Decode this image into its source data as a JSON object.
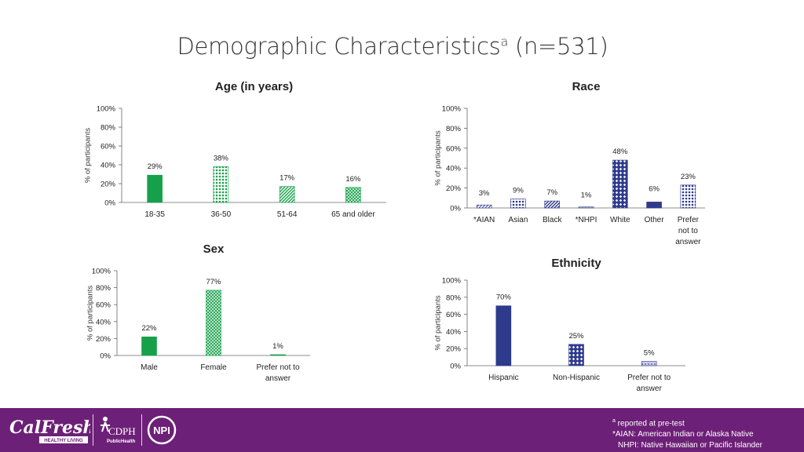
{
  "title": {
    "text": "Demographic Characteristics",
    "sup": "a",
    "suffix": " (n=531)"
  },
  "colors": {
    "green": "#16a04a",
    "navy": "#2e3a8c",
    "footer": "#6d2077"
  },
  "chart_data": [
    {
      "id": "age",
      "type": "bar",
      "title": "Age (in years)",
      "ylabel": "% of participants",
      "ylim": [
        0,
        100
      ],
      "yticks": [
        "0%",
        "20%",
        "40%",
        "60%",
        "80%",
        "100%"
      ],
      "categories": [
        [
          "18-35"
        ],
        [
          "36-50"
        ],
        [
          "51-64"
        ],
        [
          "65 and older"
        ]
      ],
      "values": [
        29,
        38,
        17,
        16
      ],
      "labels": [
        "29%",
        "38%",
        "17%",
        "16%"
      ],
      "color": "green",
      "patterns": [
        "solid",
        "dots",
        "diag",
        "grid"
      ]
    },
    {
      "id": "race",
      "type": "bar",
      "title": "Race",
      "ylabel": "% of participants",
      "ylim": [
        0,
        100
      ],
      "yticks": [
        "0%",
        "20%",
        "40%",
        "60%",
        "80%",
        "100%"
      ],
      "categories": [
        [
          "*AIAN"
        ],
        [
          "Asian"
        ],
        [
          "Black"
        ],
        [
          "*NHPI"
        ],
        [
          "White"
        ],
        [
          "Other"
        ],
        [
          "Prefer",
          "not to",
          "answer"
        ]
      ],
      "values": [
        3,
        9,
        7,
        1,
        48,
        6,
        23
      ],
      "labels": [
        "3%",
        "9%",
        "7%",
        "1%",
        "48%",
        "6%",
        "23%"
      ],
      "color": "navy",
      "patterns": [
        "lightdiag",
        "dots",
        "diag",
        "light",
        "diamonds",
        "solid",
        "dots"
      ]
    },
    {
      "id": "sex",
      "type": "bar",
      "title": "Sex",
      "ylabel": "% of participants",
      "ylim": [
        0,
        100
      ],
      "yticks": [
        "0%",
        "20%",
        "40%",
        "60%",
        "80%",
        "100%"
      ],
      "categories": [
        [
          "Male"
        ],
        [
          "Female"
        ],
        [
          "Prefer not to",
          "answer"
        ]
      ],
      "values": [
        22,
        77,
        1
      ],
      "labels": [
        "22%",
        "77%",
        "1%"
      ],
      "color": "green",
      "patterns": [
        "solid",
        "grid",
        "solid"
      ]
    },
    {
      "id": "ethnicity",
      "type": "bar",
      "title": "Ethnicity",
      "ylabel": "% of participants",
      "ylim": [
        0,
        100
      ],
      "yticks": [
        "0%",
        "20%",
        "40%",
        "60%",
        "80%",
        "100%"
      ],
      "categories": [
        [
          "Hispanic"
        ],
        [
          "Non-Hispanic"
        ],
        [
          "Prefer not to",
          "answer"
        ]
      ],
      "values": [
        70,
        25,
        5
      ],
      "labels": [
        "70%",
        "25%",
        "5%"
      ],
      "color": "navy",
      "patterns": [
        "solid",
        "diamonds",
        "light"
      ]
    }
  ],
  "footer": {
    "logos": {
      "calfresh": "CalFresh",
      "calfresh_tag": "HEALTHY LIVING",
      "cdph": "CDPH",
      "cdph_tag": "PublicHealth",
      "npi": "NPI"
    },
    "notes": {
      "note1_sup": "a",
      "note1": " reported at pre-test",
      "note2": "*AIAN: American Indian or Alaska Native",
      "note3": "NHPI: Native Hawaiian or Pacific Islander"
    }
  }
}
